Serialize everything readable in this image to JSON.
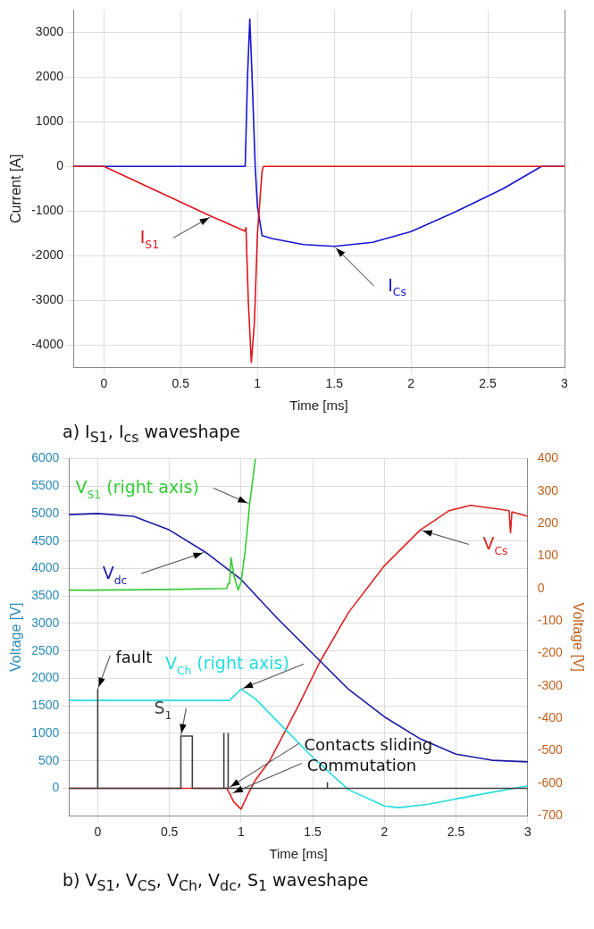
{
  "chart_data": [
    {
      "type": "line",
      "title": "a) I$_{S1}$, I$_{cs}$ waveshape",
      "xlabel": "Time [ms]",
      "ylabel": "Current [A]",
      "xlim": [
        -0.2,
        3
      ],
      "xticks": [
        0,
        0.5,
        1,
        1.5,
        2,
        2.5,
        3
      ],
      "ylim": [
        -4500,
        3500
      ],
      "yticks": [
        -4000,
        -3000,
        -2000,
        -1000,
        0,
        1000,
        2000,
        3000
      ],
      "grid": true,
      "legend": false,
      "series": [
        {
          "name": "I$_{S1}$",
          "color": "#e0141e",
          "x": [
            -0.2,
            0,
            0.25,
            0.5,
            0.7,
            0.92,
            0.925,
            0.94,
            0.96,
            0.98,
            1.0,
            1.03,
            1.04,
            1.5,
            2,
            2.5,
            3
          ],
          "values": [
            0,
            0,
            -400,
            -800,
            -1120,
            -1450,
            -1370,
            -3000,
            -4390,
            -3500,
            -1500,
            -100,
            0,
            0,
            0,
            0,
            0
          ]
        },
        {
          "name": "I$_{Cs}$",
          "color": "#1414d2",
          "x": [
            -0.2,
            0,
            0.5,
            0.92,
            0.935,
            0.95,
            0.965,
            0.985,
            1.0,
            1.03,
            1.1,
            1.3,
            1.5,
            1.75,
            2,
            2.3,
            2.6,
            2.85,
            3
          ],
          "values": [
            0,
            0,
            0,
            0,
            2000,
            3300,
            2000,
            0,
            -900,
            -1550,
            -1620,
            -1750,
            -1790,
            -1700,
            -1460,
            -1000,
            -500,
            0,
            0
          ]
        }
      ]
    },
    {
      "type": "line",
      "title": "b) V$_{S1}$, V$_{CS}$, V$_{Ch}$, V$_{dc}$, S$_{1}$ waveshape",
      "xlabel": "Time [ms]",
      "ylabel": "Voltage [V]",
      "y2label": "Voltage [V]",
      "xlim": [
        -0.2,
        3
      ],
      "xticks": [
        0,
        0.5,
        1,
        1.5,
        2,
        2.5,
        3
      ],
      "ylim": [
        -500,
        6000
      ],
      "yticks": [
        0,
        500,
        1000,
        1500,
        2000,
        2500,
        3000,
        3500,
        4000,
        4500,
        5000,
        5500,
        6000
      ],
      "y2lim": [
        -700,
        400
      ],
      "y2ticks": [
        -700,
        -600,
        -500,
        -400,
        -300,
        -200,
        -100,
        0,
        100,
        200,
        300,
        400
      ],
      "grid": true,
      "legend": false,
      "annotations": [
        {
          "text": "fault",
          "x": 0,
          "y": 1800
        },
        {
          "text": "Contacts sliding",
          "x": 0.91,
          "y": 0
        },
        {
          "text": "Commutation",
          "x": 0.93,
          "y": -100
        }
      ],
      "series": [
        {
          "name": "S$_{1}$",
          "color": "#404040",
          "x": [
            -0.2,
            0,
            0,
            0,
            0.58,
            0.58,
            0.66,
            0.66,
            0.88,
            0.88,
            0.88,
            0.91,
            0.91,
            0.91,
            1.6,
            1.6,
            1.605,
            3
          ],
          "values": [
            0,
            0,
            1800,
            0,
            0,
            950,
            950,
            0,
            0,
            1000,
            0,
            0,
            1000,
            0,
            0,
            100,
            0,
            0
          ]
        },
        {
          "name": "V$_{S1}$ (right axis)",
          "axis": "y2",
          "color": "#33cc33",
          "x": [
            -0.2,
            0,
            0.5,
            0.9,
            0.91,
            0.92,
            0.93,
            0.95,
            0.98,
            1.0,
            1.03,
            1.06,
            1.1
          ],
          "values": [
            -5,
            -5,
            -3,
            0,
            15,
            15,
            95,
            40,
            -5,
            20,
            120,
            260,
            400
          ]
        },
        {
          "name": "V$_{dc}$",
          "color": "#1a1aa8",
          "x": [
            -0.2,
            0,
            0.25,
            0.5,
            0.75,
            1.0,
            1.25,
            1.5,
            1.75,
            2.0,
            2.25,
            2.5,
            2.75,
            3
          ],
          "values": [
            4980,
            5000,
            4950,
            4700,
            4300,
            3800,
            3100,
            2450,
            1800,
            1300,
            900,
            620,
            510,
            480
          ]
        },
        {
          "name": "V$_{Ch}$ (right axis)",
          "axis": "y2",
          "color": "#22dddd",
          "x": [
            -0.2,
            0,
            0.5,
            0.92,
            1.0,
            1.1,
            1.3,
            1.5,
            1.75,
            2.0,
            2.1,
            2.3,
            2.6,
            3
          ],
          "values": [
            -345,
            -345,
            -345,
            -345,
            -310,
            -340,
            -430,
            -520,
            -620,
            -670,
            -675,
            -665,
            -640,
            -608
          ]
        },
        {
          "name": "V$_{Cs}$",
          "color": "#dd2222",
          "x": [
            -0.2,
            0,
            0.5,
            0.9,
            0.95,
            1.0,
            1.05,
            1.1,
            1.2,
            1.4,
            1.55,
            1.75,
            2.0,
            2.25,
            2.45,
            2.6,
            2.8,
            2.87,
            2.88,
            2.89,
            3
          ],
          "values": [
            0,
            0,
            0,
            0,
            -250,
            -380,
            -100,
            150,
            500,
            1500,
            2300,
            3200,
            4050,
            4700,
            5050,
            5150,
            5080,
            5050,
            4650,
            5030,
            4950
          ]
        }
      ]
    }
  ]
}
